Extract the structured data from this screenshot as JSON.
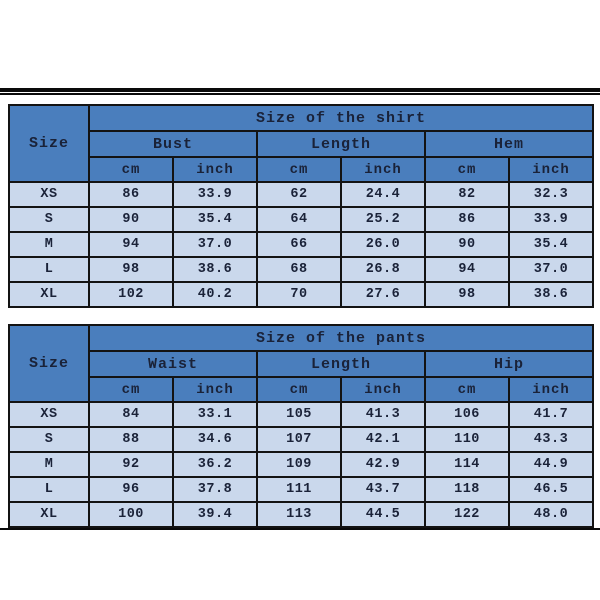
{
  "colors": {
    "header_blue": "#4a7ebd",
    "row_light_blue": "#cad8ec",
    "border_black": "#131313",
    "text_navy": "#1a2238",
    "rule_black": "#0a0a0a",
    "background": "#ffffff"
  },
  "tables": [
    {
      "id": "shirt",
      "title": "Size of the shirt",
      "corner_label": "Size",
      "groups": [
        "Bust",
        "Length",
        "Hem"
      ],
      "unit_headers": [
        "cm",
        "inch",
        "cm",
        "inch",
        "cm",
        "inch"
      ],
      "rows": [
        {
          "size": "XS",
          "values": [
            "86",
            "33.9",
            "62",
            "24.4",
            "82",
            "32.3"
          ]
        },
        {
          "size": "S",
          "values": [
            "90",
            "35.4",
            "64",
            "25.2",
            "86",
            "33.9"
          ]
        },
        {
          "size": "M",
          "values": [
            "94",
            "37.0",
            "66",
            "26.0",
            "90",
            "35.4"
          ]
        },
        {
          "size": "L",
          "values": [
            "98",
            "38.6",
            "68",
            "26.8",
            "94",
            "37.0"
          ]
        },
        {
          "size": "XL",
          "values": [
            "102",
            "40.2",
            "70",
            "27.6",
            "98",
            "38.6"
          ]
        }
      ]
    },
    {
      "id": "pants",
      "title": "Size of the pants",
      "corner_label": "Size",
      "groups": [
        "Waist",
        "Length",
        "Hip"
      ],
      "unit_headers": [
        "cm",
        "inch",
        "cm",
        "inch",
        "cm",
        "inch"
      ],
      "rows": [
        {
          "size": "XS",
          "values": [
            "84",
            "33.1",
            "105",
            "41.3",
            "106",
            "41.7"
          ]
        },
        {
          "size": "S",
          "values": [
            "88",
            "34.6",
            "107",
            "42.1",
            "110",
            "43.3"
          ]
        },
        {
          "size": "M",
          "values": [
            "92",
            "36.2",
            "109",
            "42.9",
            "114",
            "44.9"
          ]
        },
        {
          "size": "L",
          "values": [
            "96",
            "37.8",
            "111",
            "43.7",
            "118",
            "46.5"
          ]
        },
        {
          "size": "XL",
          "values": [
            "100",
            "39.4",
            "113",
            "44.5",
            "122",
            "48.0"
          ]
        }
      ]
    }
  ],
  "chart_data": [
    {
      "type": "table",
      "title": "Size of the shirt",
      "columns": [
        "Size",
        "Bust cm",
        "Bust inch",
        "Length cm",
        "Length inch",
        "Hem cm",
        "Hem inch"
      ],
      "rows": [
        [
          "XS",
          86,
          33.9,
          62,
          24.4,
          82,
          32.3
        ],
        [
          "S",
          90,
          35.4,
          64,
          25.2,
          86,
          33.9
        ],
        [
          "M",
          94,
          37.0,
          66,
          26.0,
          90,
          35.4
        ],
        [
          "L",
          98,
          38.6,
          68,
          26.8,
          94,
          37.0
        ],
        [
          "XL",
          102,
          40.2,
          70,
          27.6,
          98,
          38.6
        ]
      ]
    },
    {
      "type": "table",
      "title": "Size of the pants",
      "columns": [
        "Size",
        "Waist cm",
        "Waist inch",
        "Length cm",
        "Length inch",
        "Hip cm",
        "Hip inch"
      ],
      "rows": [
        [
          "XS",
          84,
          33.1,
          105,
          41.3,
          106,
          41.7
        ],
        [
          "S",
          88,
          34.6,
          107,
          42.1,
          110,
          43.3
        ],
        [
          "M",
          92,
          36.2,
          109,
          42.9,
          114,
          44.9
        ],
        [
          "L",
          96,
          37.8,
          111,
          43.7,
          118,
          46.5
        ],
        [
          "XL",
          100,
          39.4,
          113,
          44.5,
          122,
          48.0
        ]
      ]
    }
  ]
}
